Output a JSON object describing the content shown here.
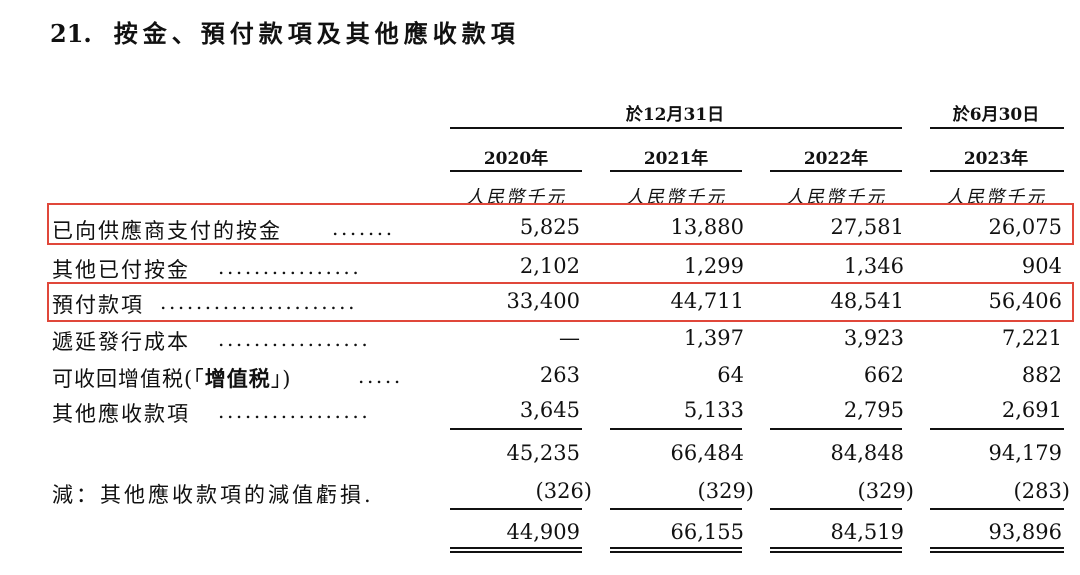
{
  "section": {
    "number": "21.",
    "title": "按金、預付款項及其他應收款項"
  },
  "header": {
    "period_group_label": "於12月31日",
    "period_single_label": "於6月30日",
    "years": [
      "2020年",
      "2021年",
      "2022年",
      "2023年"
    ],
    "unit": "人民幣千元"
  },
  "rows": [
    {
      "label": "已向供應商支付的按金",
      "dots": ".......",
      "values": [
        "5,825",
        "13,880",
        "27,581",
        "26,075"
      ]
    },
    {
      "label": "其他已付按金",
      "dots": "................",
      "values": [
        "2,102",
        "1,299",
        "1,346",
        "904"
      ]
    },
    {
      "label": "預付款項",
      "dots": "......................",
      "values": [
        "33,400",
        "44,711",
        "48,541",
        "56,406"
      ]
    },
    {
      "label": "遞延發行成本",
      "dots": ".................",
      "values": [
        "—",
        "1,397",
        "3,923",
        "7,221"
      ]
    },
    {
      "label_pre": "可收回增值税(「",
      "label_bold": "增值税",
      "label_post": "」)",
      "dots": ".....",
      "values": [
        "263",
        "64",
        "662",
        "882"
      ]
    },
    {
      "label": "其他應收款項",
      "dots": ".................",
      "values": [
        "3,645",
        "5,133",
        "2,795",
        "2,691"
      ]
    }
  ],
  "subtotal": [
    "45,235",
    "66,484",
    "84,848",
    "94,179"
  ],
  "impairment": {
    "label": "減：其他應收款項的減值虧損.",
    "values": [
      "(326)",
      "(329)",
      "(329)",
      "(283)"
    ]
  },
  "total": [
    "44,909",
    "66,155",
    "84,519",
    "93,896"
  ],
  "highlight_color": "#e0473a"
}
